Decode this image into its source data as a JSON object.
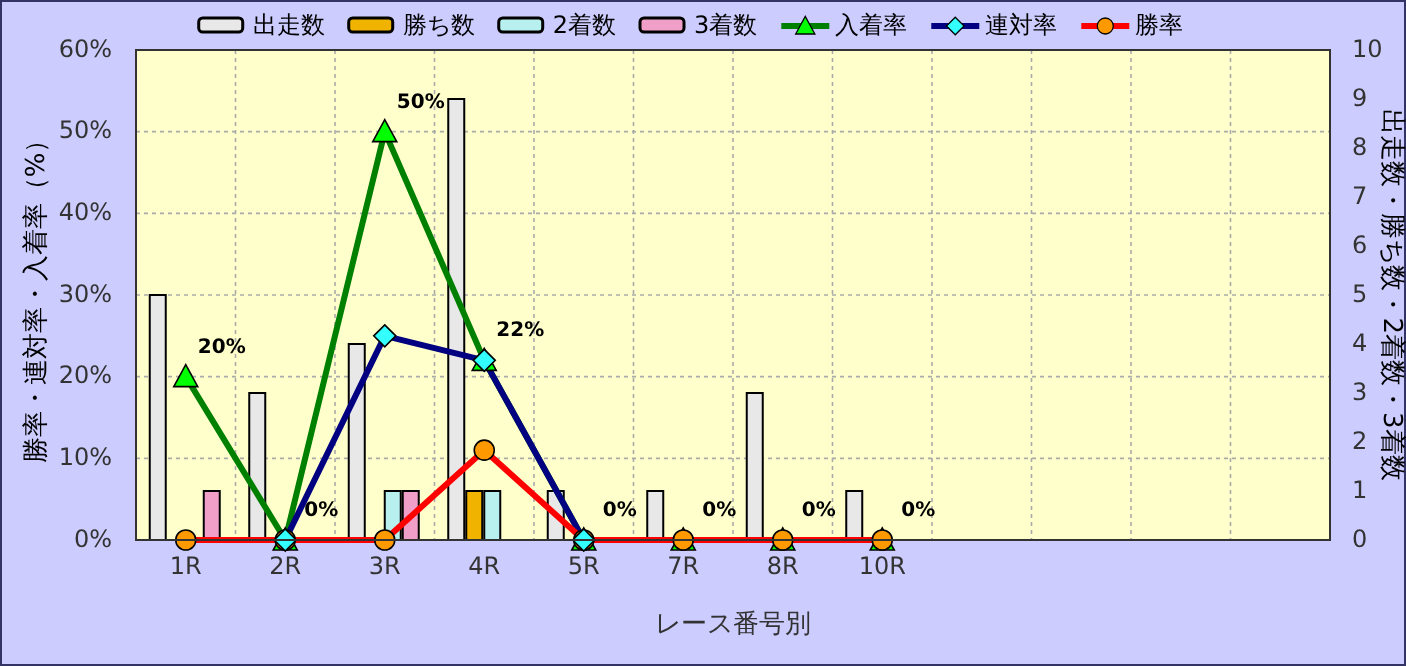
{
  "chart_data": {
    "type": "bar",
    "xlabel": "レース番号別",
    "ylabel": "勝率・連対率・入着率（%）",
    "y2label": "出走数・勝ち数・2着数・3着数",
    "categories": [
      "1R",
      "2R",
      "3R",
      "4R",
      "5R",
      "7R",
      "8R",
      "10R",
      null,
      null,
      null,
      null
    ],
    "series": [
      {
        "name": "出走数",
        "type": "bar",
        "axis": "y2",
        "color": "#e8e8e8",
        "values": [
          5,
          3,
          4,
          9,
          1,
          1,
          3,
          1,
          null,
          null,
          null,
          null
        ]
      },
      {
        "name": "勝ち数",
        "type": "bar",
        "axis": "y2",
        "color": "#f0b400",
        "values": [
          0,
          0,
          0,
          1,
          0,
          0,
          0,
          0,
          null,
          null,
          null,
          null
        ]
      },
      {
        "name": "2着数",
        "type": "bar",
        "axis": "y2",
        "color": "#b8f0f0",
        "values": [
          0,
          0,
          1,
          1,
          0,
          0,
          0,
          0,
          null,
          null,
          null,
          null
        ]
      },
      {
        "name": "3着数",
        "type": "bar",
        "axis": "y2",
        "color": "#f0a0c8",
        "values": [
          1,
          0,
          1,
          0,
          0,
          0,
          0,
          0,
          null,
          null,
          null,
          null
        ]
      },
      {
        "name": "入着率",
        "type": "line",
        "color": "#008000",
        "marker": "triangle",
        "values": [
          20,
          0,
          50,
          22,
          0,
          0,
          0,
          0,
          null,
          null,
          null,
          null
        ],
        "value_labels": [
          "20%",
          "0%",
          "50%",
          "22%",
          "0%",
          "0%",
          "0%",
          "0%",
          null,
          null,
          null,
          null
        ]
      },
      {
        "name": "連対率",
        "type": "line",
        "color": "#000080",
        "marker": "diamond",
        "values": [
          null,
          0,
          25,
          22,
          0,
          null,
          null,
          null,
          null,
          null,
          null,
          null
        ]
      },
      {
        "name": "勝率",
        "type": "line",
        "color": "#ff0000",
        "marker": "circle",
        "values": [
          0,
          0,
          0,
          11,
          0,
          0,
          0,
          0,
          null,
          null,
          null,
          null
        ]
      }
    ],
    "ylim": [
      0,
      60
    ],
    "yticks": [
      {
        "value": 0,
        "label": "0%"
      },
      {
        "value": 10,
        "label": "10%"
      },
      {
        "value": 20,
        "label": "20%"
      },
      {
        "value": 30,
        "label": "30%"
      },
      {
        "value": 40,
        "label": "40%"
      },
      {
        "value": 50,
        "label": "50%"
      },
      {
        "value": 60,
        "label": "60%"
      }
    ],
    "y2lim": [
      0,
      10
    ],
    "y2ticks": [
      0,
      1,
      2,
      3,
      4,
      5,
      6,
      7,
      8,
      9,
      10
    ],
    "grid": true,
    "legend": "top"
  }
}
